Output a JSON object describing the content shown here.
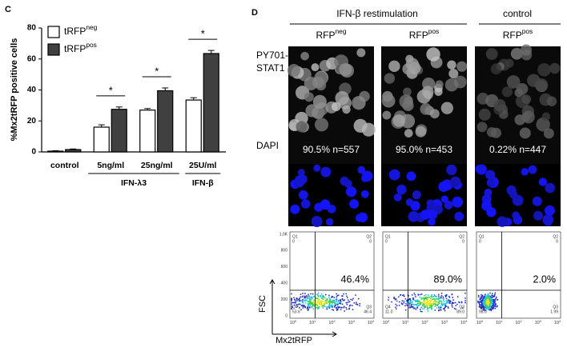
{
  "chart_data": {
    "type": "bar",
    "panel": "C",
    "ylabel": "%Mx2tRFP positive cells",
    "categories": [
      "control",
      "5ng/ml",
      "25ng/ml",
      "25U/ml"
    ],
    "groups": [
      {
        "label": "IFN-λ3"
      },
      {
        "label": "IFN-β"
      }
    ],
    "series": [
      {
        "name": "tRFP",
        "name_sup": "neg",
        "color": "#ffffff",
        "values": [
          0.5,
          16,
          27,
          33.5
        ],
        "errors": [
          0.3,
          1.5,
          1,
          1.5
        ]
      },
      {
        "name": "tRFP",
        "name_sup": "pos",
        "color": "#404040",
        "values": [
          1.5,
          27.5,
          39.5,
          63.5
        ],
        "errors": [
          0.4,
          1.5,
          1.8,
          2
        ]
      }
    ],
    "significance": [
      "*",
      "*",
      "*"
    ],
    "ylim": [
      0,
      80
    ],
    "yticks": [
      0,
      20,
      40,
      60,
      80
    ]
  },
  "panel_d": {
    "label": "D",
    "headers": [
      "IFN-β restimulation",
      "control"
    ],
    "row_labels": [
      "PY701-",
      "STAT1",
      "DAPI"
    ],
    "columns": [
      {
        "label": "RFP",
        "sup": "neg",
        "annotation": "90.5% n=557",
        "flow_percent": "46.4%",
        "quadrants": [
          [
            "Q1",
            "0"
          ],
          [
            "Q2",
            "0"
          ],
          [
            "Q4",
            "53.6"
          ],
          [
            "Q3",
            "46.4"
          ]
        ]
      },
      {
        "label": "RFP",
        "sup": "pos",
        "annotation": "95.0% n=453",
        "flow_percent": "89.0%",
        "quadrants": [
          [
            "Q1",
            "0"
          ],
          [
            "Q2",
            "0"
          ],
          [
            "Q4",
            "11.0"
          ],
          [
            "Q3",
            "89.0"
          ]
        ]
      },
      {
        "label": "RFP",
        "sup": "pos",
        "annotation": "0.22% n=447",
        "flow_percent": "2.0%",
        "quadrants": [
          [
            "Q1",
            "0"
          ],
          [
            "Q2",
            "0"
          ],
          [
            "Q4",
            "98.0"
          ],
          [
            "Q3",
            "1.99"
          ]
        ]
      }
    ],
    "flow_yticks": [
      "1,0K",
      "800",
      "600",
      "400",
      "200",
      "0"
    ],
    "flow_xticks": [
      {
        "base": "10",
        "exp": "0"
      },
      {
        "base": "10",
        "exp": "1"
      },
      {
        "base": "10",
        "exp": "2"
      },
      {
        "base": "10",
        "exp": "3"
      },
      {
        "base": "10",
        "exp": "4"
      }
    ],
    "flow_ylabel": "FSC",
    "flow_xlabel": "Mx2tRFP"
  }
}
